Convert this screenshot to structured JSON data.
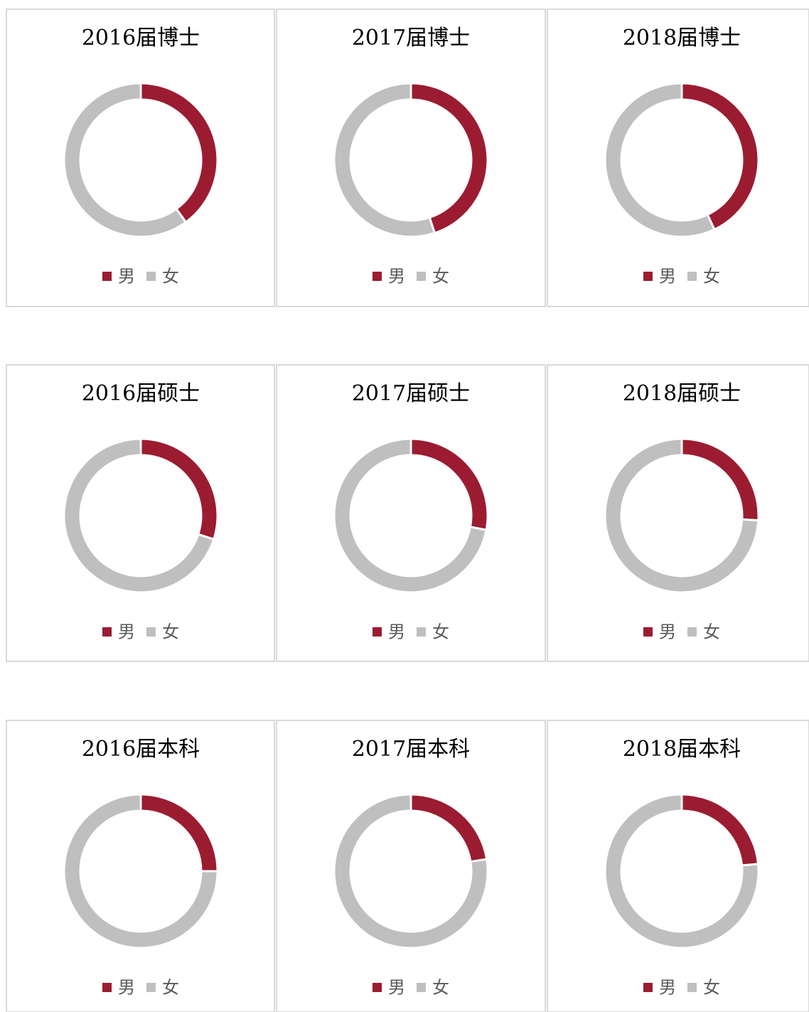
{
  "chart_data": [
    {
      "type": "donut",
      "title": "2016届博士",
      "categories": [
        "男",
        "女"
      ],
      "values": [
        40,
        60
      ],
      "colors": [
        "#9b1c31",
        "#bfbfbf"
      ]
    },
    {
      "type": "donut",
      "title": "2017届博士",
      "categories": [
        "男",
        "女"
      ],
      "values": [
        45,
        55
      ],
      "colors": [
        "#9b1c31",
        "#bfbfbf"
      ]
    },
    {
      "type": "donut",
      "title": "2018届博士",
      "categories": [
        "男",
        "女"
      ],
      "values": [
        43,
        57
      ],
      "colors": [
        "#9b1c31",
        "#bfbfbf"
      ]
    },
    {
      "type": "donut",
      "title": "2016届硕士",
      "categories": [
        "男",
        "女"
      ],
      "values": [
        30,
        70
      ],
      "colors": [
        "#9b1c31",
        "#bfbfbf"
      ]
    },
    {
      "type": "donut",
      "title": "2017届硕士",
      "categories": [
        "男",
        "女"
      ],
      "values": [
        28,
        72
      ],
      "colors": [
        "#9b1c31",
        "#bfbfbf"
      ]
    },
    {
      "type": "donut",
      "title": "2018届硕士",
      "categories": [
        "男",
        "女"
      ],
      "values": [
        26,
        74
      ],
      "colors": [
        "#9b1c31",
        "#bfbfbf"
      ]
    },
    {
      "type": "donut",
      "title": "2016届本科",
      "categories": [
        "男",
        "女"
      ],
      "values": [
        25,
        75
      ],
      "colors": [
        "#9b1c31",
        "#bfbfbf"
      ]
    },
    {
      "type": "donut",
      "title": "2017届本科",
      "categories": [
        "男",
        "女"
      ],
      "values": [
        22.5,
        77.5
      ],
      "colors": [
        "#9b1c31",
        "#bfbfbf"
      ]
    },
    {
      "type": "donut",
      "title": "2018届本科",
      "categories": [
        "男",
        "女"
      ],
      "values": [
        23.5,
        76.5
      ],
      "colors": [
        "#9b1c31",
        "#bfbfbf"
      ]
    }
  ]
}
